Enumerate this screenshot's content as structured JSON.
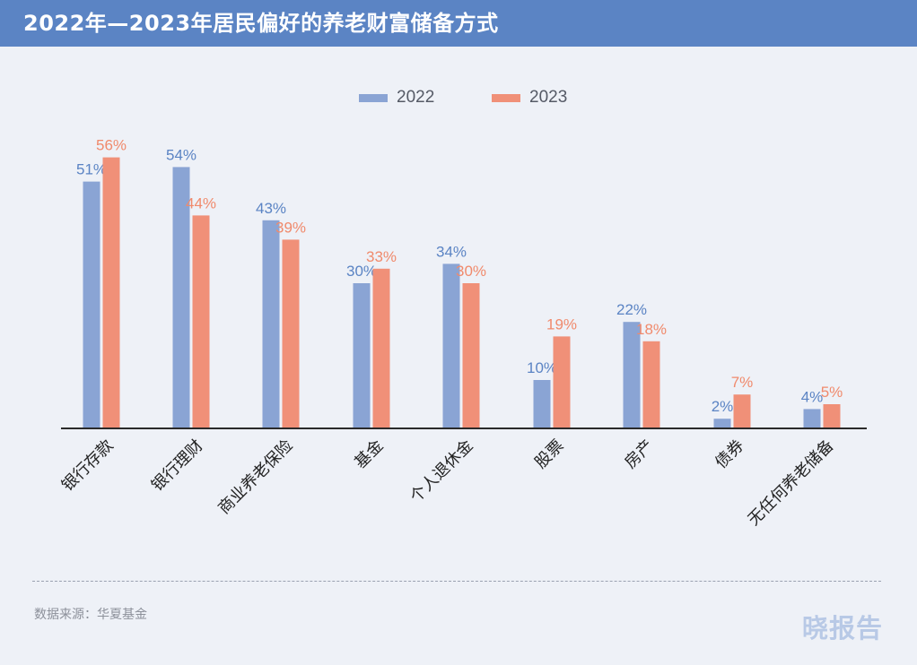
{
  "title": "2022年—2023年居民偏好的养老财富储备方式",
  "source": "数据来源：华夏基金",
  "brand": "晓报告",
  "colors": {
    "header": "#5b84c4",
    "series_2022": "#8aa4d4",
    "series_2023": "#f09078",
    "label_2022": "#5b84c4",
    "label_2023": "#f08a6c",
    "axis": "#2a2a2a"
  },
  "chart_data": {
    "type": "bar",
    "title": "2022年—2023年居民偏好的养老财富储备方式",
    "xlabel": "",
    "ylabel": "",
    "ylim": [
      0,
      60
    ],
    "grid": false,
    "legend_position": "top-center",
    "value_suffix": "%",
    "categories": [
      "银行存款",
      "银行理财",
      "商业养老保险",
      "基金",
      "个人退休金",
      "股票",
      "房产",
      "债券",
      "无任何养老储备"
    ],
    "series": [
      {
        "name": "2022",
        "values": [
          51,
          54,
          43,
          30,
          34,
          10,
          22,
          2,
          4
        ]
      },
      {
        "name": "2023",
        "values": [
          56,
          44,
          39,
          33,
          30,
          19,
          18,
          7,
          5
        ]
      }
    ]
  }
}
